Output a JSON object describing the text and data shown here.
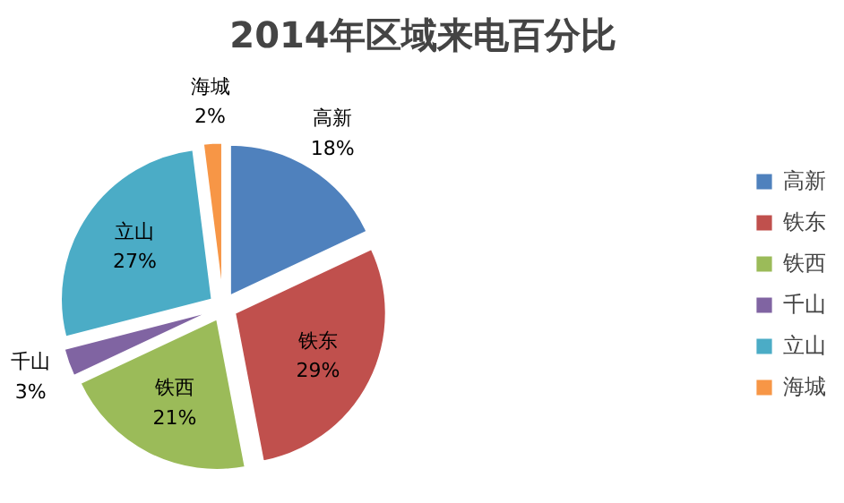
{
  "chart_data": {
    "type": "pie",
    "title": "2014年区域来电百分比",
    "categories": [
      "高新",
      "铁东",
      "铁西",
      "千山",
      "立山",
      "海城"
    ],
    "values": [
      18,
      29,
      21,
      3,
      27,
      2
    ],
    "colors": [
      "#4f81bd",
      "#c0504d",
      "#9bbb59",
      "#8064a2",
      "#4bacc6",
      "#f79646"
    ],
    "value_labels": [
      "18%",
      "29%",
      "21%",
      "3%",
      "27%",
      "2%"
    ],
    "legend": "right"
  }
}
